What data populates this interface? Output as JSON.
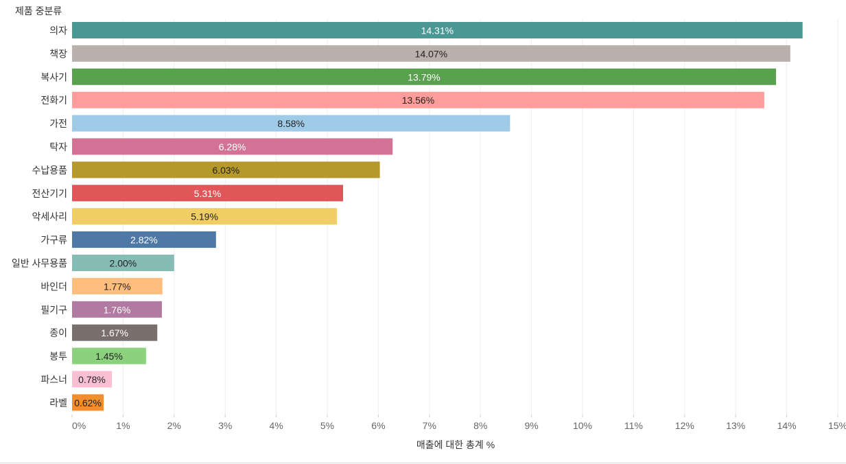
{
  "chart_data": {
    "type": "bar",
    "orientation": "horizontal",
    "row_header": "제품 중분류",
    "xlabel": "매출에 대한 총계 %",
    "xlim": [
      0,
      15
    ],
    "x_ticks": [
      "0%",
      "1%",
      "2%",
      "3%",
      "4%",
      "5%",
      "6%",
      "7%",
      "8%",
      "9%",
      "10%",
      "11%",
      "12%",
      "13%",
      "14%",
      "15%"
    ],
    "grid": true,
    "categories": [
      "의자",
      "책장",
      "복사기",
      "전화기",
      "가전",
      "탁자",
      "수납용품",
      "전산기기",
      "악세사리",
      "가구류",
      "일반 사무용품",
      "바인더",
      "필기구",
      "종이",
      "봉투",
      "파스너",
      "라벨"
    ],
    "values": [
      14.31,
      14.07,
      13.79,
      13.56,
      8.58,
      6.28,
      6.03,
      5.31,
      5.19,
      2.82,
      2.0,
      1.77,
      1.76,
      1.67,
      1.45,
      0.78,
      0.62
    ],
    "value_labels": [
      "14.31%",
      "14.07%",
      "13.79%",
      "13.56%",
      "8.58%",
      "6.28%",
      "6.03%",
      "5.31%",
      "5.19%",
      "2.82%",
      "2.00%",
      "1.77%",
      "1.76%",
      "1.67%",
      "1.45%",
      "0.78%",
      "0.62%"
    ],
    "colors": [
      "#499894",
      "#bab0ac",
      "#59a14f",
      "#ff9d9a",
      "#a0cbe8",
      "#d37295",
      "#b6992d",
      "#e15759",
      "#f1ce63",
      "#4e79a7",
      "#86bcb6",
      "#ffbe7d",
      "#b07aa1",
      "#79706e",
      "#8cd17d",
      "#fabfd2",
      "#f28e2b"
    ],
    "label_colors": [
      "#ffffff",
      "#222222",
      "#ffffff",
      "#222222",
      "#222222",
      "#ffffff",
      "#222222",
      "#ffffff",
      "#222222",
      "#ffffff",
      "#222222",
      "#222222",
      "#ffffff",
      "#ffffff",
      "#222222",
      "#222222",
      "#222222"
    ]
  }
}
